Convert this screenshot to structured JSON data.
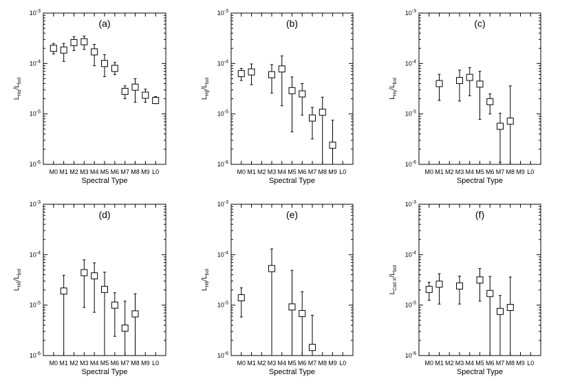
{
  "chart_data": [
    {
      "type": "scatter",
      "panel_label": "(a)",
      "ylabel": {
        "main": "L",
        "sub1": "Hα",
        "mid": "/L",
        "sub2": "bol"
      },
      "xlabel": "Spectral Type",
      "categories": [
        "M0",
        "M1",
        "M2",
        "M3",
        "M4",
        "M5",
        "M6",
        "M7",
        "M8",
        "M9",
        "L0"
      ],
      "yscale": "log",
      "ylim": [
        1e-06,
        0.001
      ],
      "ytick_labels": [
        {
          "base": "10",
          "exp": "-3"
        },
        {
          "base": "10",
          "exp": "-4"
        },
        {
          "base": "10",
          "exp": "-5"
        },
        {
          "base": "10",
          "exp": "-6"
        }
      ],
      "points": [
        {
          "x": "M0",
          "y": 0.0002,
          "ylo": 0.000155,
          "yhi": 0.00025
        },
        {
          "x": "M1",
          "y": 0.000185,
          "ylo": 0.00011,
          "yhi": 0.00025
        },
        {
          "x": "M2",
          "y": 0.00026,
          "ylo": 0.00018,
          "yhi": 0.00034
        },
        {
          "x": "M3",
          "y": 0.00027,
          "ylo": 0.00019,
          "yhi": 0.00035
        },
        {
          "x": "M4",
          "y": 0.00017,
          "ylo": 9e-05,
          "yhi": 0.00024
        },
        {
          "x": "M5",
          "y": 0.0001,
          "ylo": 5.5e-05,
          "yhi": 0.00015
        },
        {
          "x": "M6",
          "y": 8e-05,
          "ylo": 6e-05,
          "yhi": 0.000105
        },
        {
          "x": "M7",
          "y": 2.8e-05,
          "ylo": 2e-05,
          "yhi": 3.6e-05
        },
        {
          "x": "M8",
          "y": 3.4e-05,
          "ylo": 1.7e-05,
          "yhi": 5e-05
        },
        {
          "x": "M9",
          "y": 2.35e-05,
          "ylo": 1.7e-05,
          "yhi": 3.1e-05
        },
        {
          "x": "L0",
          "y": 1.85e-05,
          "ylo": 1.6e-05,
          "yhi": 2.2e-05
        }
      ]
    },
    {
      "type": "scatter",
      "panel_label": "(b)",
      "ylabel": {
        "main": "L",
        "sub1": "Hβ",
        "mid": "/L",
        "sub2": "bol"
      },
      "xlabel": "Spectral Type",
      "categories": [
        "M0",
        "M1",
        "M2",
        "M3",
        "M4",
        "M5",
        "M6",
        "M7",
        "M8",
        "M9",
        "L0"
      ],
      "yscale": "log",
      "ylim": [
        1e-06,
        0.001
      ],
      "ytick_labels": [
        {
          "base": "10",
          "exp": "-3"
        },
        {
          "base": "10",
          "exp": "-4"
        },
        {
          "base": "10",
          "exp": "-5"
        },
        {
          "base": "10",
          "exp": "-6"
        }
      ],
      "points": [
        {
          "x": "M0",
          "y": 6.3e-05,
          "ylo": 4.6e-05,
          "yhi": 8e-05
        },
        {
          "x": "M1",
          "y": 6.8e-05,
          "ylo": 3.8e-05,
          "yhi": 9.8e-05
        },
        {
          "x": "M3",
          "y": 6e-05,
          "ylo": 2.6e-05,
          "yhi": 9.5e-05
        },
        {
          "x": "M4",
          "y": 7.8e-05,
          "ylo": 1.45e-05,
          "yhi": 0.000142
        },
        {
          "x": "M5",
          "y": 2.9e-05,
          "ylo": 4.4e-06,
          "yhi": 5.4e-05
        },
        {
          "x": "M6",
          "y": 2.5e-05,
          "ylo": 9.5e-06,
          "yhi": 4e-05
        },
        {
          "x": "M7",
          "y": 8.3e-06,
          "ylo": 3.2e-06,
          "yhi": 1.35e-05
        },
        {
          "x": "M8",
          "y": 1.08e-05,
          "ylo": 1e-06,
          "yhi": 2.15e-05
        },
        {
          "x": "M9",
          "y": 2.4e-06,
          "ylo": 1e-06,
          "yhi": 7.5e-06
        }
      ]
    },
    {
      "type": "scatter",
      "panel_label": "(c)",
      "ylabel": {
        "main": "L",
        "sub1": "Hγ",
        "mid": "/L",
        "sub2": "bol"
      },
      "xlabel": "Spectral Type",
      "categories": [
        "M0",
        "M1",
        "M2",
        "M3",
        "M4",
        "M5",
        "M6",
        "M7",
        "M8",
        "M9",
        "L0"
      ],
      "yscale": "log",
      "ylim": [
        1e-06,
        0.001
      ],
      "ytick_labels": [
        {
          "base": "10",
          "exp": "-3"
        },
        {
          "base": "10",
          "exp": "-4"
        },
        {
          "base": "10",
          "exp": "-5"
        },
        {
          "base": "10",
          "exp": "-6"
        }
      ],
      "points": [
        {
          "x": "M1",
          "y": 4e-05,
          "ylo": 1.85e-05,
          "yhi": 6.1e-05
        },
        {
          "x": "M3",
          "y": 4.6e-05,
          "ylo": 1.8e-05,
          "yhi": 7.4e-05
        },
        {
          "x": "M4",
          "y": 5.3e-05,
          "ylo": 2.3e-05,
          "yhi": 8.3e-05
        },
        {
          "x": "M5",
          "y": 3.9e-05,
          "ylo": 7.8e-06,
          "yhi": 7e-05
        },
        {
          "x": "M6",
          "y": 1.75e-05,
          "ylo": 1e-05,
          "yhi": 2.5e-05
        },
        {
          "x": "M7",
          "y": 5.7e-06,
          "ylo": 1.1e-06,
          "yhi": 1.03e-05
        },
        {
          "x": "M8",
          "y": 7.2e-06,
          "ylo": 1e-06,
          "yhi": 3.6e-05
        }
      ]
    },
    {
      "type": "scatter",
      "panel_label": "(d)",
      "ylabel": {
        "main": "L",
        "sub1": "Hδ",
        "mid": "/L",
        "sub2": "bol"
      },
      "xlabel": "Spectral Type",
      "categories": [
        "M0",
        "M1",
        "M2",
        "M3",
        "M4",
        "M5",
        "M6",
        "M7",
        "M8",
        "M9",
        "L0"
      ],
      "yscale": "log",
      "ylim": [
        1e-06,
        0.001
      ],
      "ytick_labels": [
        {
          "base": "10",
          "exp": "-3"
        },
        {
          "base": "10",
          "exp": "-4"
        },
        {
          "base": "10",
          "exp": "-5"
        },
        {
          "base": "10",
          "exp": "-6"
        }
      ],
      "points": [
        {
          "x": "M1",
          "y": 1.9e-05,
          "ylo": 1e-06,
          "yhi": 3.9e-05
        },
        {
          "x": "M3",
          "y": 4.4e-05,
          "ylo": 9e-06,
          "yhi": 7.9e-05
        },
        {
          "x": "M4",
          "y": 3.8e-05,
          "ylo": 7.2e-06,
          "yhi": 6.9e-05
        },
        {
          "x": "M5",
          "y": 2.05e-05,
          "ylo": 1e-06,
          "yhi": 4.5e-05
        },
        {
          "x": "M6",
          "y": 1e-05,
          "ylo": 2.4e-06,
          "yhi": 1.76e-05
        },
        {
          "x": "M7",
          "y": 3.5e-06,
          "ylo": 1e-06,
          "yhi": 1.2e-05
        },
        {
          "x": "M8",
          "y": 6.7e-06,
          "ylo": 1e-06,
          "yhi": 1.68e-05
        }
      ]
    },
    {
      "type": "scatter",
      "panel_label": "(e)",
      "ylabel": {
        "main": "L",
        "sub1": "H8",
        "mid": "/L",
        "sub2": "bol"
      },
      "xlabel": "Spectral Type",
      "categories": [
        "M0",
        "M1",
        "M2",
        "M3",
        "M4",
        "M5",
        "M6",
        "M7",
        "M8",
        "M9",
        "L0"
      ],
      "yscale": "log",
      "ylim": [
        1e-06,
        0.001
      ],
      "ytick_labels": [
        {
          "base": "10",
          "exp": "-3"
        },
        {
          "base": "10",
          "exp": "-4"
        },
        {
          "base": "10",
          "exp": "-5"
        },
        {
          "base": "10",
          "exp": "-6"
        }
      ],
      "points": [
        {
          "x": "M0",
          "y": 1.4e-05,
          "ylo": 5.8e-06,
          "yhi": 2.2e-05
        },
        {
          "x": "M3",
          "y": 5.3e-05,
          "ylo": 1e-06,
          "yhi": 0.00013
        },
        {
          "x": "M5",
          "y": 9.2e-06,
          "ylo": 1e-06,
          "yhi": 4.9e-05
        },
        {
          "x": "M6",
          "y": 6.8e-06,
          "ylo": 1e-06,
          "yhi": 1.85e-05
        },
        {
          "x": "M7",
          "y": 1.45e-06,
          "ylo": 1e-06,
          "yhi": 6.3e-06
        }
      ]
    },
    {
      "type": "scatter",
      "panel_label": "(f)",
      "ylabel": {
        "main": "L",
        "sub1": "CaII K",
        "mid": "/L",
        "sub2": "bol"
      },
      "xlabel": "Spectral Type",
      "categories": [
        "M0",
        "M1",
        "M2",
        "M3",
        "M4",
        "M5",
        "M6",
        "M7",
        "M8",
        "M9",
        "L0"
      ],
      "yscale": "log",
      "ylim": [
        1e-06,
        0.001
      ],
      "ytick_labels": [
        {
          "base": "10",
          "exp": "-3"
        },
        {
          "base": "10",
          "exp": "-4"
        },
        {
          "base": "10",
          "exp": "-5"
        },
        {
          "base": "10",
          "exp": "-6"
        }
      ],
      "points": [
        {
          "x": "M0",
          "y": 2.05e-05,
          "ylo": 1.25e-05,
          "yhi": 2.85e-05
        },
        {
          "x": "M1",
          "y": 2.6e-05,
          "ylo": 1.05e-05,
          "yhi": 4.2e-05
        },
        {
          "x": "M3",
          "y": 2.4e-05,
          "ylo": 1.05e-05,
          "yhi": 3.75e-05
        },
        {
          "x": "M5",
          "y": 3.15e-05,
          "ylo": 1.2e-05,
          "yhi": 5.3e-05
        },
        {
          "x": "M6",
          "y": 1.7e-05,
          "ylo": 1e-06,
          "yhi": 3.7e-05
        },
        {
          "x": "M7",
          "y": 7.5e-06,
          "ylo": 1e-06,
          "yhi": 1.55e-05
        },
        {
          "x": "M8",
          "y": 9e-06,
          "ylo": 1e-06,
          "yhi": 3.6e-05
        }
      ]
    }
  ]
}
